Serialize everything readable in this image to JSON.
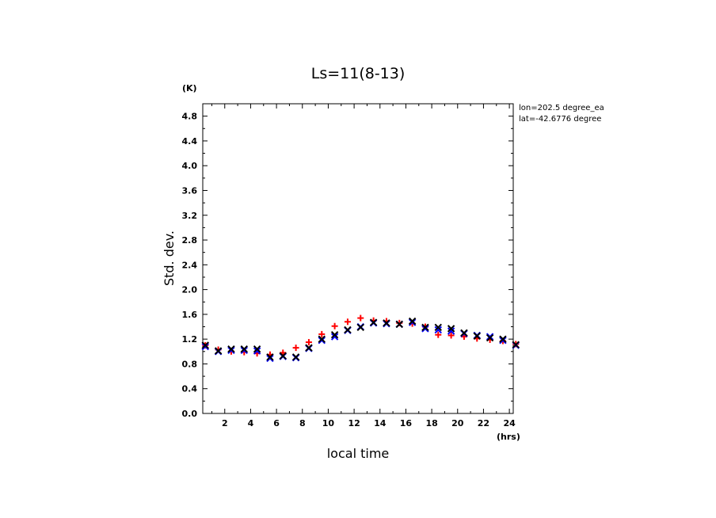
{
  "chart_data": {
    "type": "scatter",
    "title": "Ls=11(8-13)",
    "xlabel": "local time",
    "ylabel": "Std. dev.",
    "x_unit": "(hrs)",
    "y_unit": "(K)",
    "xlim": [
      0.3,
      24.3
    ],
    "ylim": [
      0.0,
      5.0
    ],
    "x_ticks": [
      2,
      4,
      6,
      8,
      10,
      12,
      14,
      16,
      18,
      20,
      22,
      24
    ],
    "y_ticks": [
      0.0,
      0.4,
      0.8,
      1.2,
      1.6,
      2.0,
      2.4,
      2.8,
      3.2,
      3.6,
      4.0,
      4.4,
      4.8
    ],
    "y_tick_labels": [
      "0.0",
      "0.4",
      "0.8",
      "1.2",
      "1.6",
      "2.0",
      "2.4",
      "2.8",
      "3.2",
      "3.6",
      "4.0",
      "4.4",
      "4.8"
    ],
    "annotations": [
      "lon=202.5 degree_ea",
      "lat=-42.6776 degree"
    ],
    "grid": false,
    "colors": {
      "red_plus": "#ff0000",
      "blue_x": "#0000ff",
      "black_x": "#000000"
    },
    "series": [
      {
        "marker": "plus",
        "color": "#ff0000",
        "x": [
          0.5,
          1.5,
          2.5,
          3.5,
          4.5,
          5.5,
          6.5,
          7.5,
          8.5,
          9.5,
          10.5,
          11.5,
          12.5,
          13.5,
          14.5,
          15.5,
          16.5,
          17.5,
          18.5,
          19.5,
          20.5,
          21.5,
          22.5,
          23.5,
          24.5
        ],
        "values": [
          1.1,
          1.03,
          1.0,
          0.99,
          0.97,
          0.95,
          0.98,
          1.06,
          1.15,
          1.28,
          1.41,
          1.48,
          1.54,
          1.5,
          1.49,
          1.46,
          1.45,
          1.4,
          1.27,
          1.26,
          1.24,
          1.21,
          1.19,
          1.17,
          1.12
        ]
      },
      {
        "marker": "x",
        "color": "#0000ff",
        "x": [
          0.5,
          1.5,
          2.5,
          3.5,
          4.5,
          5.5,
          6.5,
          7.5,
          8.5,
          9.5,
          10.5,
          11.5,
          12.5,
          13.5,
          14.5,
          15.5,
          16.5,
          17.5,
          18.5,
          19.5,
          20.5,
          21.5,
          22.5,
          23.5,
          24.5
        ],
        "values": [
          1.08,
          1.0,
          1.02,
          1.02,
          1.01,
          0.89,
          0.92,
          0.9,
          1.05,
          1.18,
          1.24,
          1.34,
          1.4,
          1.46,
          1.45,
          1.44,
          1.47,
          1.37,
          1.35,
          1.33,
          1.29,
          1.26,
          1.24,
          1.18,
          1.1
        ]
      },
      {
        "marker": "x",
        "color": "#000000",
        "x": [
          0.5,
          1.5,
          2.5,
          3.5,
          4.5,
          5.5,
          6.5,
          7.5,
          8.5,
          9.5,
          10.5,
          11.5,
          12.5,
          13.5,
          14.5,
          15.5,
          16.5,
          17.5,
          18.5,
          19.5,
          20.5,
          21.5,
          22.5,
          23.5,
          24.5
        ],
        "values": [
          1.1,
          1.01,
          1.04,
          1.04,
          1.04,
          0.91,
          0.93,
          0.91,
          1.06,
          1.2,
          1.27,
          1.35,
          1.39,
          1.47,
          1.46,
          1.44,
          1.49,
          1.39,
          1.39,
          1.37,
          1.3,
          1.25,
          1.22,
          1.2,
          1.11
        ]
      }
    ]
  }
}
